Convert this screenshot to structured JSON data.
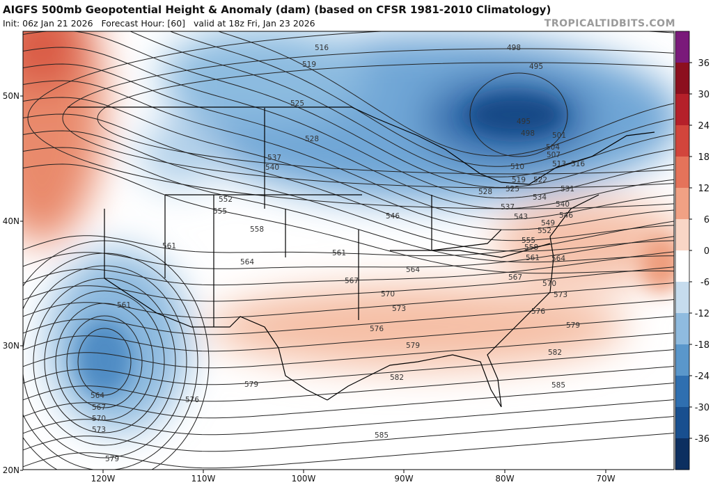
{
  "header": {
    "title": "AIGFS 500mb Geopotential Height & Anomaly (dam) (based on CFSR 1981-2010 Climatology)",
    "subtitle": "Init: 06z Jan 21 2026   Forecast Hour: [60]   valid at 18z Fri, Jan 23 2026",
    "watermark": "TROPICALTIDBITS.COM"
  },
  "map": {
    "lat_labels": [
      "50N",
      "40N",
      "30N",
      "20N"
    ],
    "lon_labels": [
      "120W",
      "110W",
      "100W",
      "90W",
      "80W",
      "70W"
    ],
    "contour_labels": [
      "516",
      "519",
      "498",
      "495",
      "525",
      "528",
      "537",
      "540",
      "495",
      "498",
      "501",
      "504",
      "507",
      "513",
      "516",
      "510",
      "519",
      "522",
      "525",
      "528",
      "531",
      "534",
      "537",
      "540",
      "543",
      "546",
      "546",
      "549",
      "552",
      "555",
      "558",
      "552",
      "555",
      "558",
      "561",
      "561",
      "564",
      "564",
      "564",
      "561",
      "567",
      "567",
      "570",
      "570",
      "573",
      "573",
      "576",
      "576",
      "579",
      "579",
      "582",
      "582",
      "585",
      "585",
      "579",
      "576",
      "561",
      "564",
      "567",
      "570",
      "573",
      "579"
    ]
  },
  "colorbar": {
    "ticks": [
      36,
      30,
      24,
      18,
      12,
      6,
      0,
      -6,
      -12,
      -18,
      -24,
      -30,
      -36
    ],
    "colors": [
      "#7a1a7a",
      "#8c0f1e",
      "#b5202a",
      "#d2453c",
      "#e5735a",
      "#f1a184",
      "#f9d6c6",
      "#ffffff",
      "#c6dcee",
      "#8fbbdf",
      "#5a97cb",
      "#2f6fb0",
      "#184f8f",
      "#0c2f60"
    ]
  }
}
